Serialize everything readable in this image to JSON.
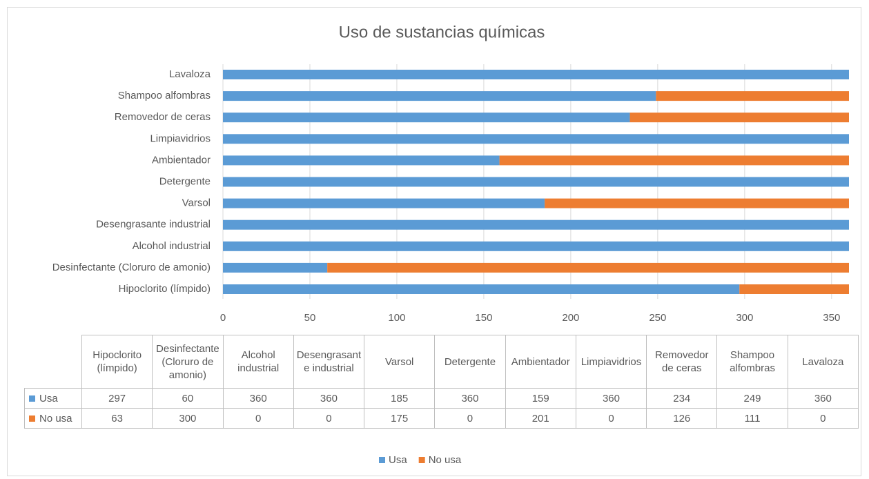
{
  "chart_data": {
    "type": "bar",
    "orientation": "horizontal",
    "stacked": true,
    "title": "Uso de sustancias químicas",
    "categories": [
      "Hipoclorito (límpido)",
      "Desinfectante (Cloruro de amonio)",
      "Alcohol industrial",
      "Desengrasante industrial",
      "Varsol",
      "Detergente",
      "Ambientador",
      "Limpiavidrios",
      "Removedor de ceras",
      "Shampoo alfombras",
      "Lavaloza"
    ],
    "series": [
      {
        "name": "Usa",
        "color": "#5b9bd5",
        "values": [
          297,
          60,
          360,
          360,
          185,
          360,
          159,
          360,
          234,
          249,
          360
        ]
      },
      {
        "name": "No usa",
        "color": "#ed7d31",
        "values": [
          63,
          300,
          0,
          0,
          175,
          0,
          201,
          0,
          126,
          111,
          0
        ]
      }
    ],
    "xlim": [
      0,
      360
    ],
    "xticks": [
      0,
      50,
      100,
      150,
      200,
      250,
      300,
      350
    ],
    "grid": true,
    "legend": "bottom",
    "data_table": true
  }
}
